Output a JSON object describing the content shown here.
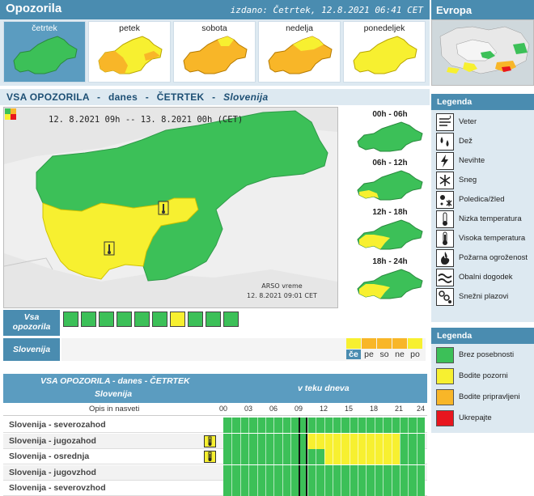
{
  "header": {
    "title": "Opozorila",
    "issued": "izdano: Četrtek, 12.8.2021 06:41 CET",
    "europe": "Evropa"
  },
  "days": [
    {
      "label": "četrtek",
      "selected": true
    },
    {
      "label": "petek",
      "selected": false
    },
    {
      "label": "sobota",
      "selected": false
    },
    {
      "label": "nedelja",
      "selected": false
    },
    {
      "label": "ponedeljek",
      "selected": false
    }
  ],
  "main_title": {
    "a": "VSA OPOZORILA",
    "b": "danes",
    "c": "ČETRTEK",
    "sep": "-",
    "region": "Slovenija"
  },
  "map": {
    "period": "12. 8.2021  09h  --  13. 8.2021  00h     (CET)",
    "credit_1": "ARSO vreme",
    "credit_2": "12. 8.2021  09:01 CET"
  },
  "timeslots": [
    {
      "label": "00h - 06h"
    },
    {
      "label": "06h - 12h"
    },
    {
      "label": "12h - 18h"
    },
    {
      "label": "18h - 24h"
    }
  ],
  "legend": {
    "title": "Legenda",
    "types": [
      {
        "label": "Veter",
        "icon": "wind-icon"
      },
      {
        "label": "Dež",
        "icon": "rain-icon"
      },
      {
        "label": "Nevihte",
        "icon": "thunderstorm-icon"
      },
      {
        "label": "Sneg",
        "icon": "snow-icon"
      },
      {
        "label": "Poledica/žled",
        "icon": "ice-icon"
      },
      {
        "label": "Nizka temperatura",
        "icon": "low-temperature-icon"
      },
      {
        "label": "Visoka temperatura",
        "icon": "high-temperature-icon"
      },
      {
        "label": "Požarna ogroženost",
        "icon": "fire-icon"
      },
      {
        "label": "Obalni dogodek",
        "icon": "coastal-icon"
      },
      {
        "label": "Snežni plazovi",
        "icon": "avalanche-icon"
      }
    ],
    "colors_title": "Legenda",
    "colors": [
      {
        "label": "Brez posebnosti",
        "color": "#3cc058"
      },
      {
        "label": "Bodite pozorni",
        "color": "#f7f030"
      },
      {
        "label": "Bodite pripravljeni",
        "color": "#f8b628"
      },
      {
        "label": "Ukrepajte",
        "color": "#e8161e"
      }
    ]
  },
  "vsa_label": "Vsa\nopozorila",
  "slovenija_label": "Slovenija",
  "day_strip": [
    {
      "label": "če",
      "color": "#f7f030",
      "current": true
    },
    {
      "label": "pe",
      "color": "#f8b628",
      "current": false
    },
    {
      "label": "so",
      "color": "#f8b628",
      "current": false
    },
    {
      "label": "ne",
      "color": "#f8b628",
      "current": false
    },
    {
      "label": "po",
      "color": "#f7f030",
      "current": false
    }
  ],
  "table": {
    "title": "VSA OPOZORILA - danes - ČETRTEK",
    "subtitle": "Slovenija",
    "in_day": "v teku dneva",
    "desc_header": "Opis in nasveti",
    "hours": [
      "00",
      "03",
      "06",
      "09",
      "12",
      "15",
      "18",
      "21",
      "24"
    ],
    "rows": [
      {
        "name": "Slovenija - severozahod",
        "warn": false,
        "yellow_from": 0,
        "yellow_to": 0
      },
      {
        "name": "Slovenija - jugozahod",
        "warn": true,
        "yellow_from": 10,
        "yellow_to": 21
      },
      {
        "name": "Slovenija - osrednja",
        "warn": true,
        "yellow_from": 12,
        "yellow_to": 21
      },
      {
        "name": "Slovenija - jugovzhod",
        "warn": false,
        "yellow_from": 0,
        "yellow_to": 0
      },
      {
        "name": "Slovenija - severovzhod",
        "warn": false,
        "yellow_from": 0,
        "yellow_to": 0
      }
    ]
  }
}
